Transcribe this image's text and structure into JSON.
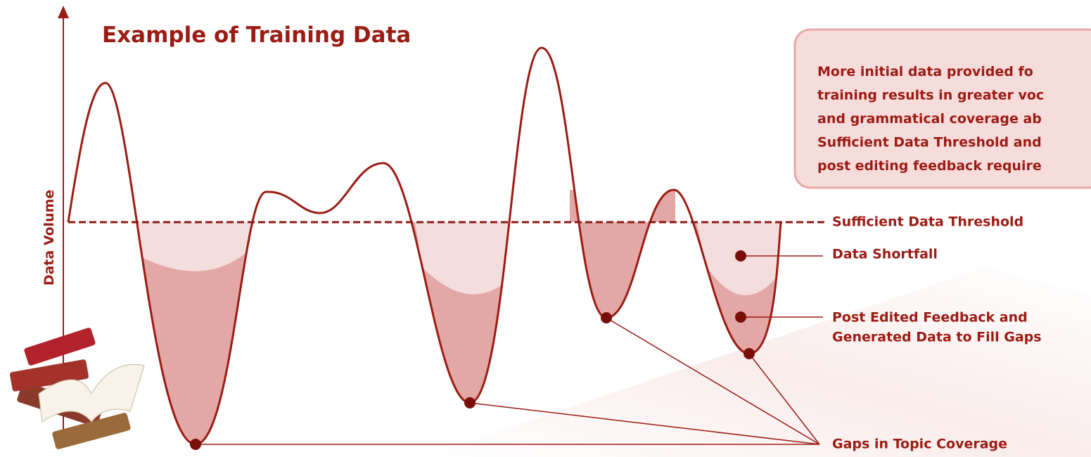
{
  "header": {
    "title": "Example of Training Data"
  },
  "axis": {
    "y_label": "Data Volume"
  },
  "callout": {
    "lines": [
      "More initial data provided fo",
      "training results in greater voc",
      "and grammatical coverage ab",
      "Sufficient Data Threshold and",
      "post editing feedback require"
    ]
  },
  "labels": {
    "threshold": "Sufficient Data Threshold",
    "shortfall": "Data Shortfall",
    "feedback": [
      "Post Edited Feedback and",
      "Generated Data to Fill Gaps"
    ],
    "gaps": "Gaps in Topic Coverage"
  }
}
